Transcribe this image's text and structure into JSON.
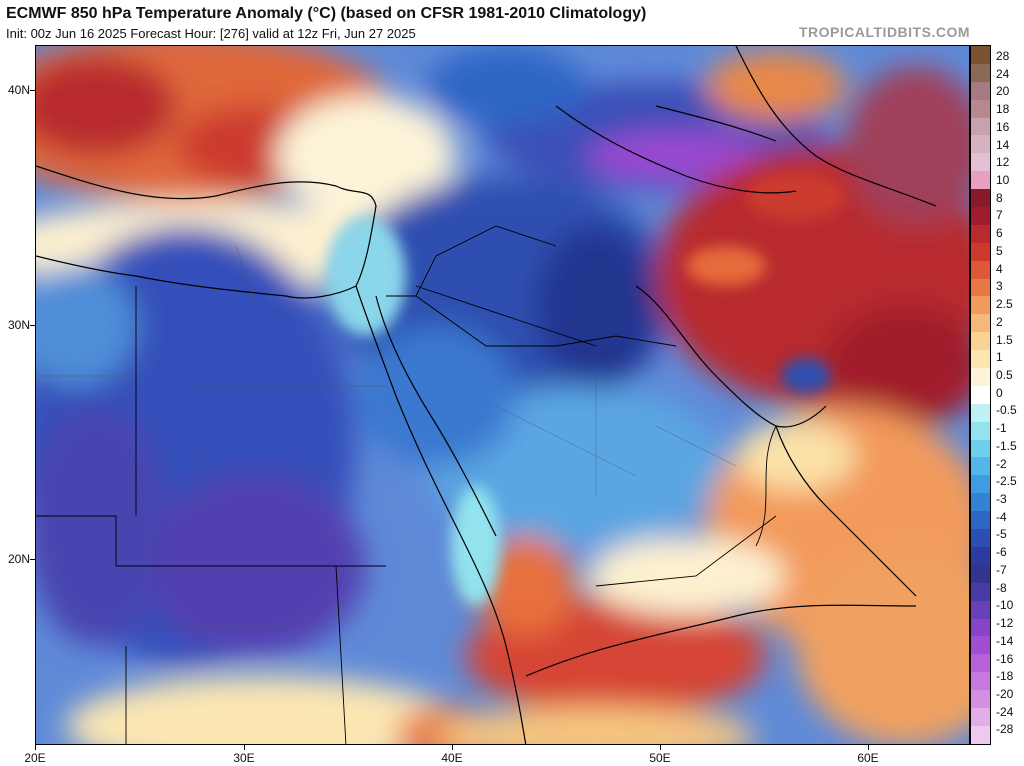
{
  "header": {
    "title": "ECMWF 850 hPa Temperature Anomaly (°C) (based on CFSR 1981-2010 Climatology)",
    "subtitle": "Init: 00z Jun 16 2025   Forecast Hour: [276]   valid at 12z Fri, Jun 27 2025",
    "brand": "TROPICALTIDBITS.COM"
  },
  "axes": {
    "lat_labels": [
      "40N",
      "30N",
      "20N"
    ],
    "lon_labels": [
      "20E",
      "30E",
      "40E",
      "50E",
      "60E"
    ]
  },
  "legend": {
    "levels": [
      "28",
      "24",
      "20",
      "18",
      "16",
      "14",
      "12",
      "10",
      "8",
      "7",
      "6",
      "5",
      "4",
      "3",
      "2.5",
      "2",
      "1.5",
      "1",
      "0.5",
      "0",
      "-0.5",
      "-1",
      "-1.5",
      "-2",
      "-2.5",
      "-3",
      "-4",
      "-5",
      "-6",
      "-7",
      "-8",
      "-10",
      "-12",
      "-14",
      "-16",
      "-18",
      "-20",
      "-24",
      "-28"
    ],
    "colors": [
      "#7a5230",
      "#8b6a55",
      "#a57a80",
      "#b88890",
      "#c9a0ad",
      "#d6b2c0",
      "#e3c0d3",
      "#e8a0c0",
      "#8a1a2a",
      "#a01c2c",
      "#b82a2e",
      "#cc3a2e",
      "#dd5838",
      "#e87846",
      "#f09a5c",
      "#f5b878",
      "#f9d394",
      "#fce7b2",
      "#fdf4d8",
      "#ffffff",
      "#bff0f4",
      "#92e3ee",
      "#6ed0ec",
      "#52b6ea",
      "#409be0",
      "#3581d6",
      "#2f66c6",
      "#2d4fb2",
      "#2b3c9e",
      "#33348e",
      "#4a3aa4",
      "#6840b8",
      "#8844c8",
      "#a04ed2",
      "#b860d8",
      "#c878de",
      "#d48fe2",
      "#e2aee8",
      "#eecaf0"
    ]
  }
}
